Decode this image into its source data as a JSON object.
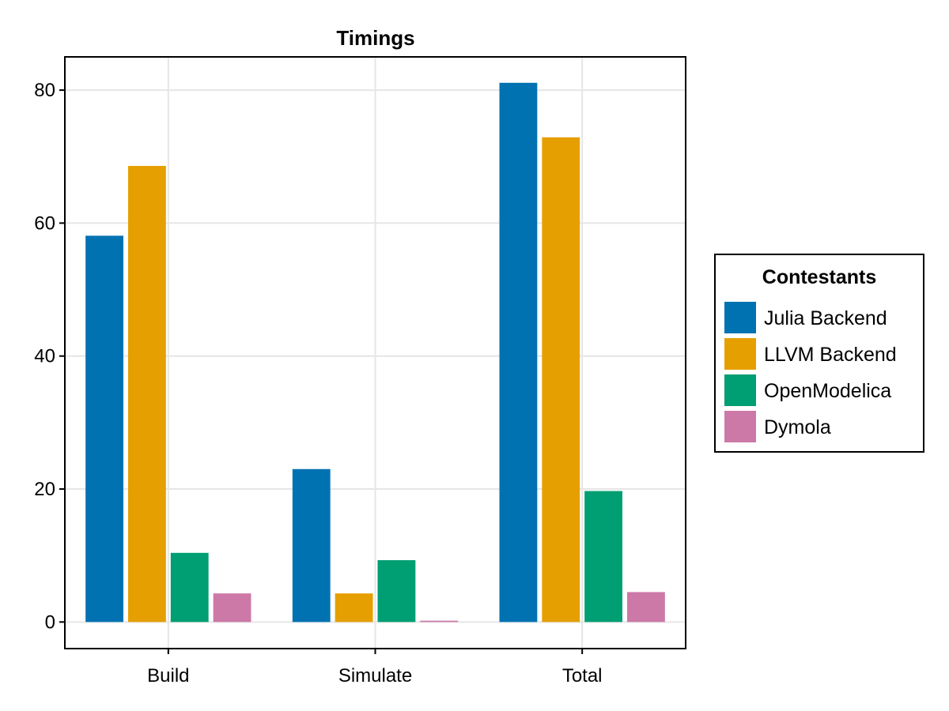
{
  "chart_data": {
    "type": "bar",
    "title": "Timings",
    "xlabel": "",
    "ylabel": "",
    "categories": [
      "Build",
      "Simulate",
      "Total"
    ],
    "series": [
      {
        "name": "Julia Backend",
        "values": [
          58.1,
          23.0,
          81.1
        ],
        "color": "#0072b2"
      },
      {
        "name": "LLVM Backend",
        "values": [
          68.6,
          4.3,
          72.9
        ],
        "color": "#e69f00"
      },
      {
        "name": "OpenModelica",
        "values": [
          10.4,
          9.3,
          19.7
        ],
        "color": "#009e73"
      },
      {
        "name": "Dymola",
        "values": [
          4.3,
          0.2,
          4.5
        ],
        "color": "#cc79a7"
      }
    ],
    "ylim": [
      -4,
      85
    ],
    "yticks": [
      "0",
      "20",
      "40",
      "60",
      "80"
    ],
    "grid": true,
    "legend": {
      "title": "Contestants",
      "position": "right"
    }
  }
}
